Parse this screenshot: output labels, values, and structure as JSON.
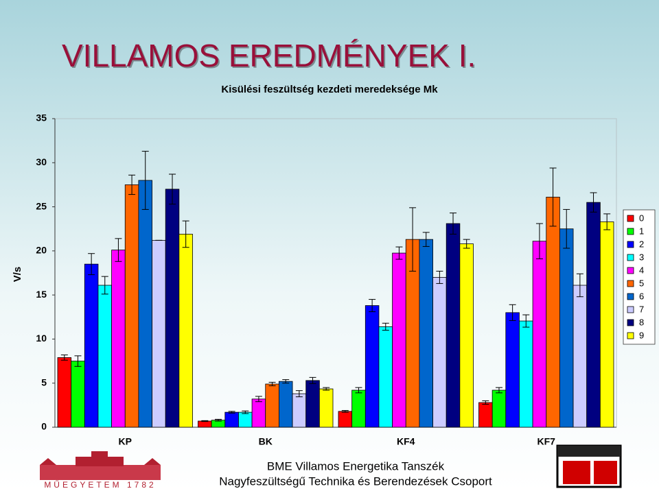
{
  "slide_title": "VILLAMOS EREDMÉNYEK I.",
  "footer": {
    "line1": "BME Villamos Energetika Tanszék",
    "line2": "Nagyfeszültségű Technika és Berendezések Csoport",
    "logo_text": "MŰEGYETEM 1782"
  },
  "chart_data": {
    "type": "bar",
    "title": "Kisülési feszültség kezdeti meredeksége Mk",
    "y_label": "V/s",
    "categories": [
      "KP",
      "BK",
      "KF4",
      "KF7"
    ],
    "ylim": [
      0,
      35
    ],
    "yticks": [
      0,
      5,
      10,
      15,
      20,
      25,
      30,
      35
    ],
    "grid": false,
    "legend": "right",
    "series": [
      {
        "name": "0",
        "color": "#ff0000",
        "values": [
          7.9,
          0.7,
          1.8,
          2.8
        ],
        "errors": [
          0.3,
          0.05,
          0.1,
          0.2
        ]
      },
      {
        "name": "1",
        "color": "#00ff00",
        "values": [
          7.5,
          0.8,
          4.2,
          4.2
        ],
        "errors": [
          0.6,
          0.1,
          0.3,
          0.3
        ]
      },
      {
        "name": "2",
        "color": "#0000ff",
        "values": [
          18.5,
          1.7,
          13.8,
          13.0
        ],
        "errors": [
          1.2,
          0.1,
          0.7,
          0.9
        ]
      },
      {
        "name": "3",
        "color": "#00ffff",
        "values": [
          16.1,
          1.7,
          11.4,
          12.05
        ],
        "errors": [
          1.0,
          0.15,
          0.4,
          0.7
        ]
      },
      {
        "name": "4",
        "color": "#ff00ff",
        "values": [
          20.1,
          3.2,
          19.75,
          21.1
        ],
        "errors": [
          1.3,
          0.3,
          0.7,
          2.0
        ]
      },
      {
        "name": "5",
        "color": "#ff6600",
        "values": [
          27.5,
          4.9,
          21.3,
          26.1
        ],
        "errors": [
          1.1,
          0.2,
          3.6,
          3.3
        ]
      },
      {
        "name": "6",
        "color": "#0066cc",
        "values": [
          28.0,
          5.2,
          21.3,
          22.5
        ],
        "errors": [
          3.3,
          0.2,
          0.8,
          2.2
        ]
      },
      {
        "name": "7",
        "color": "#ccccff",
        "values": [
          21.2,
          3.8,
          17.0,
          16.1
        ],
        "errors": [
          0,
          0.35,
          0.7,
          1.3
        ]
      },
      {
        "name": "8",
        "color": "#000080",
        "values": [
          27.0,
          5.3,
          23.1,
          25.5
        ],
        "errors": [
          1.7,
          0.35,
          1.2,
          1.1
        ]
      },
      {
        "name": "9",
        "color": "#ffff00",
        "values": [
          21.9,
          4.35,
          20.8,
          23.3
        ],
        "errors": [
          1.5,
          0.15,
          0.5,
          0.9
        ]
      }
    ]
  }
}
